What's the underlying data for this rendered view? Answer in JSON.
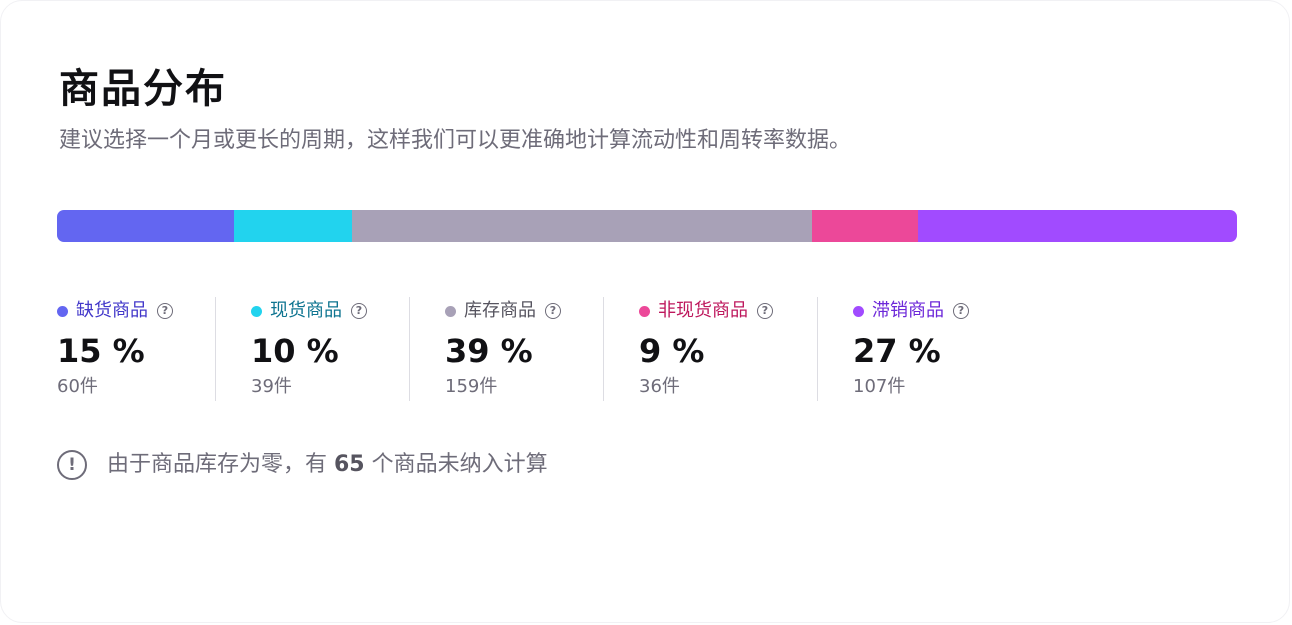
{
  "card": {
    "title": "商品分布",
    "subtitle": "建议选择一个月或更长的周期，这样我们可以更准确地计算流动性和周转率数据。"
  },
  "distribution": [
    {
      "key": "out_of_stock",
      "label": "缺货商品",
      "percent": 15,
      "percent_text": "15 %",
      "count_text": "60件",
      "color": "#6366f1",
      "label_color": "#4338ca",
      "icon": "question-circle-icon"
    },
    {
      "key": "in_stock",
      "label": "现货商品",
      "percent": 10,
      "percent_text": "10 %",
      "count_text": "39件",
      "color": "#22d3ee",
      "label_color": "#0e7490",
      "icon": "question-circle-icon"
    },
    {
      "key": "inventory",
      "label": "库存商品",
      "percent": 39,
      "percent_text": "39 %",
      "count_text": "159件",
      "color": "#a8a1b7",
      "label_color": "#56545f",
      "icon": "question-circle-icon"
    },
    {
      "key": "non_stock",
      "label": "非现货商品",
      "percent": 9,
      "percent_text": "9 %",
      "count_text": "36件",
      "color": "#ec4899",
      "label_color": "#be185d",
      "icon": "question-circle-icon"
    },
    {
      "key": "slow_moving",
      "label": "滞销商品",
      "percent": 27,
      "percent_text": "27 %",
      "count_text": "107件",
      "color": "#a14bff",
      "label_color": "#6d28d9",
      "icon": "question-circle-icon"
    }
  ],
  "note": {
    "icon": "alert-circle-icon",
    "prefix": "由于商品库存为零，有 ",
    "number": "65",
    "suffix": " 个商品未纳入计算"
  }
}
